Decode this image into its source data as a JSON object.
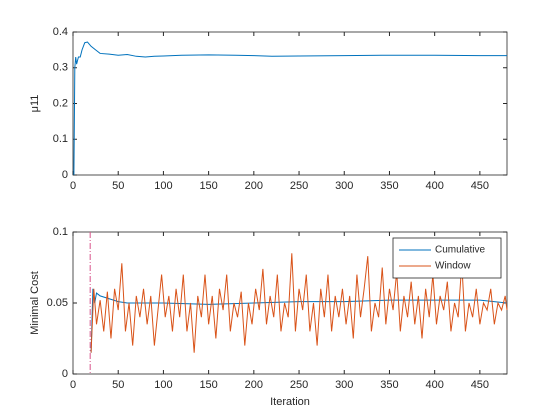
{
  "chart_data": [
    {
      "type": "line",
      "ylabel": "μ11",
      "color": "#0072bd",
      "x": [
        1,
        2,
        3,
        4,
        6,
        8,
        10,
        13,
        16,
        18,
        20,
        25,
        30,
        40,
        50,
        60,
        70,
        80,
        90,
        100,
        120,
        150,
        180,
        200,
        220,
        250,
        300,
        350,
        400,
        450,
        480
      ],
      "values": [
        0,
        0.3,
        0.33,
        0.31,
        0.33,
        0.33,
        0.35,
        0.37,
        0.372,
        0.366,
        0.36,
        0.35,
        0.34,
        0.338,
        0.335,
        0.337,
        0.332,
        0.33,
        0.332,
        0.333,
        0.335,
        0.336,
        0.335,
        0.334,
        0.332,
        0.333,
        0.334,
        0.335,
        0.335,
        0.334,
        0.334
      ],
      "xlim": [
        0,
        480
      ],
      "xticks": [
        0,
        50,
        100,
        150,
        200,
        250,
        300,
        350,
        400,
        450
      ],
      "ylim": [
        0,
        0.4
      ],
      "yticks": [
        0,
        0.1,
        0.2,
        0.3,
        0.4
      ]
    },
    {
      "type": "line",
      "xlabel": "Iteration",
      "ylabel": "Minimal Cost",
      "legend": "northeast",
      "vline": {
        "x": 19,
        "color": "#d9538a"
      },
      "series": [
        {
          "name": "Cumulative",
          "color": "#0072bd",
          "x": [
            20,
            22,
            24,
            26,
            30,
            40,
            50,
            60,
            80,
            100,
            150,
            200,
            250,
            300,
            350,
            400,
            450,
            480
          ],
          "values": [
            0.015,
            0.06,
            0.05,
            0.057,
            0.055,
            0.053,
            0.051,
            0.05,
            0.05,
            0.05,
            0.049,
            0.05,
            0.051,
            0.051,
            0.052,
            0.052,
            0.052,
            0.05
          ]
        },
        {
          "name": "Window",
          "color": "#d95319",
          "x": [
            20,
            23,
            26,
            30,
            34,
            38,
            42,
            46,
            50,
            54,
            58,
            62,
            66,
            70,
            74,
            78,
            82,
            86,
            90,
            94,
            98,
            102,
            106,
            110,
            114,
            118,
            122,
            126,
            130,
            134,
            138,
            142,
            146,
            150,
            154,
            158,
            162,
            166,
            170,
            174,
            178,
            182,
            186,
            190,
            194,
            198,
            202,
            206,
            210,
            214,
            218,
            222,
            226,
            230,
            234,
            238,
            242,
            246,
            250,
            254,
            258,
            262,
            266,
            270,
            274,
            278,
            282,
            286,
            290,
            294,
            298,
            302,
            306,
            310,
            314,
            318,
            322,
            326,
            330,
            334,
            338,
            342,
            346,
            350,
            354,
            358,
            362,
            366,
            370,
            374,
            378,
            382,
            386,
            390,
            394,
            398,
            402,
            406,
            410,
            414,
            418,
            422,
            426,
            430,
            434,
            438,
            442,
            446,
            450,
            454,
            458,
            462,
            466,
            470,
            474,
            478,
            480
          ],
          "values": [
            0.015,
            0.06,
            0.035,
            0.052,
            0.03,
            0.058,
            0.025,
            0.06,
            0.045,
            0.078,
            0.03,
            0.05,
            0.02,
            0.055,
            0.04,
            0.06,
            0.035,
            0.055,
            0.02,
            0.045,
            0.07,
            0.04,
            0.055,
            0.03,
            0.06,
            0.04,
            0.07,
            0.03,
            0.05,
            0.015,
            0.055,
            0.04,
            0.07,
            0.035,
            0.055,
            0.025,
            0.06,
            0.045,
            0.07,
            0.03,
            0.05,
            0.04,
            0.058,
            0.02,
            0.05,
            0.035,
            0.06,
            0.045,
            0.074,
            0.035,
            0.055,
            0.04,
            0.07,
            0.03,
            0.05,
            0.04,
            0.085,
            0.03,
            0.06,
            0.045,
            0.07,
            0.03,
            0.05,
            0.02,
            0.06,
            0.04,
            0.07,
            0.03,
            0.055,
            0.04,
            0.06,
            0.035,
            0.055,
            0.025,
            0.07,
            0.04,
            0.06,
            0.083,
            0.03,
            0.05,
            0.04,
            0.075,
            0.035,
            0.06,
            0.045,
            0.072,
            0.03,
            0.055,
            0.04,
            0.065,
            0.035,
            0.055,
            0.025,
            0.06,
            0.04,
            0.07,
            0.035,
            0.055,
            0.045,
            0.065,
            0.03,
            0.05,
            0.04,
            0.078,
            0.03,
            0.05,
            0.04,
            0.06,
            0.035,
            0.05,
            0.045,
            0.06,
            0.035,
            0.05,
            0.045,
            0.055,
            0.045
          ]
        }
      ],
      "xlim": [
        0,
        480
      ],
      "xticks": [
        0,
        50,
        100,
        150,
        200,
        250,
        300,
        350,
        400,
        450
      ],
      "ylim": [
        0,
        0.1
      ],
      "yticks": [
        0,
        0.05,
        0.1
      ]
    }
  ]
}
